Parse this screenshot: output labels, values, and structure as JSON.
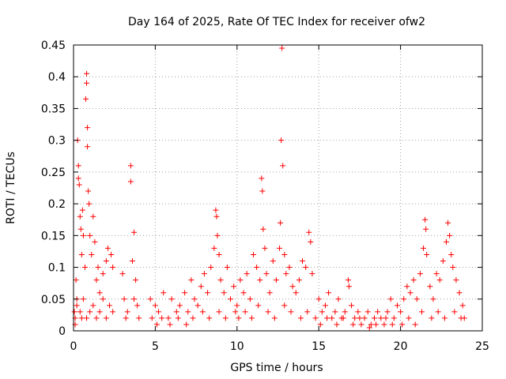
{
  "chart_data": {
    "type": "scatter",
    "title": "Day 164 of 2025, Rate Of TEC Index for receiver ofw2",
    "xlabel": "GPS time / hours",
    "ylabel": "ROTI / TECUs",
    "xlim": [
      0,
      25
    ],
    "ylim": [
      0,
      0.45
    ],
    "x_ticks": [
      "0",
      "5",
      "10",
      "15",
      "20",
      "25"
    ],
    "y_ticks": [
      "0",
      "0.05",
      "0.1",
      "0.15",
      "0.2",
      "0.25",
      "0.3",
      "0.35",
      "0.4",
      "0.45"
    ],
    "grid": true,
    "marker": "+",
    "color": "#ff0000",
    "series": [
      {
        "points": [
          [
            0.05,
            0.03
          ],
          [
            0.1,
            0.02
          ],
          [
            0.15,
            0.08
          ],
          [
            0.2,
            0.05
          ],
          [
            0.25,
            0.3
          ],
          [
            0.3,
            0.24
          ],
          [
            0.3,
            0.26
          ],
          [
            0.35,
            0.23
          ],
          [
            0.4,
            0.18
          ],
          [
            0.45,
            0.16
          ],
          [
            0.5,
            0.12
          ],
          [
            0.55,
            0.19
          ],
          [
            0.6,
            0.15
          ],
          [
            0.7,
            0.1
          ],
          [
            0.75,
            0.365
          ],
          [
            0.8,
            0.39
          ],
          [
            0.8,
            0.405
          ],
          [
            0.85,
            0.29
          ],
          [
            0.85,
            0.32
          ],
          [
            0.9,
            0.22
          ],
          [
            0.95,
            0.2
          ],
          [
            1.0,
            0.15
          ],
          [
            1.1,
            0.12
          ],
          [
            1.2,
            0.18
          ],
          [
            1.3,
            0.14
          ],
          [
            1.4,
            0.08
          ],
          [
            1.5,
            0.1
          ],
          [
            1.6,
            0.06
          ],
          [
            1.8,
            0.09
          ],
          [
            2.0,
            0.11
          ],
          [
            2.1,
            0.13
          ],
          [
            2.3,
            0.12
          ],
          [
            2.4,
            0.1
          ],
          [
            0.1,
            0.01
          ],
          [
            0.2,
            0.04
          ],
          [
            0.4,
            0.03
          ],
          [
            0.5,
            0.02
          ],
          [
            0.6,
            0.05
          ],
          [
            0.8,
            0.02
          ],
          [
            1.0,
            0.03
          ],
          [
            1.2,
            0.04
          ],
          [
            1.4,
            0.02
          ],
          [
            1.6,
            0.03
          ],
          [
            1.8,
            0.05
          ],
          [
            2.0,
            0.02
          ],
          [
            2.2,
            0.04
          ],
          [
            2.4,
            0.03
          ],
          [
            3.0,
            0.09
          ],
          [
            3.1,
            0.05
          ],
          [
            3.2,
            0.02
          ],
          [
            3.5,
            0.26
          ],
          [
            3.5,
            0.235
          ],
          [
            3.6,
            0.11
          ],
          [
            3.7,
            0.155
          ],
          [
            3.8,
            0.08
          ],
          [
            3.9,
            0.04
          ],
          [
            4.0,
            0.02
          ],
          [
            3.3,
            0.03
          ],
          [
            3.7,
            0.05
          ],
          [
            4.7,
            0.05
          ],
          [
            4.8,
            0.02
          ],
          [
            5.0,
            0.04
          ],
          [
            5.2,
            0.03
          ],
          [
            5.5,
            0.06
          ],
          [
            5.8,
            0.02
          ],
          [
            6.0,
            0.05
          ],
          [
            6.3,
            0.03
          ],
          [
            6.5,
            0.04
          ],
          [
            6.8,
            0.06
          ],
          [
            7.0,
            0.03
          ],
          [
            7.2,
            0.08
          ],
          [
            7.4,
            0.05
          ],
          [
            7.6,
            0.04
          ],
          [
            7.8,
            0.07
          ],
          [
            8.0,
            0.09
          ],
          [
            8.2,
            0.06
          ],
          [
            8.4,
            0.1
          ],
          [
            8.6,
            0.13
          ],
          [
            8.7,
            0.19
          ],
          [
            8.75,
            0.18
          ],
          [
            8.8,
            0.15
          ],
          [
            8.9,
            0.12
          ],
          [
            9.0,
            0.08
          ],
          [
            9.2,
            0.06
          ],
          [
            9.4,
            0.1
          ],
          [
            9.6,
            0.05
          ],
          [
            9.8,
            0.07
          ],
          [
            5.1,
            0.01
          ],
          [
            5.4,
            0.02
          ],
          [
            5.9,
            0.01
          ],
          [
            6.4,
            0.02
          ],
          [
            6.9,
            0.01
          ],
          [
            7.3,
            0.02
          ],
          [
            7.9,
            0.03
          ],
          [
            8.3,
            0.02
          ],
          [
            8.9,
            0.03
          ],
          [
            9.3,
            0.02
          ],
          [
            9.9,
            0.03
          ],
          [
            10.0,
            0.04
          ],
          [
            10.2,
            0.08
          ],
          [
            10.4,
            0.06
          ],
          [
            10.6,
            0.09
          ],
          [
            10.8,
            0.05
          ],
          [
            11.0,
            0.12
          ],
          [
            11.2,
            0.1
          ],
          [
            11.4,
            0.08
          ],
          [
            11.5,
            0.24
          ],
          [
            11.55,
            0.22
          ],
          [
            11.6,
            0.16
          ],
          [
            11.7,
            0.13
          ],
          [
            11.8,
            0.09
          ],
          [
            12.0,
            0.06
          ],
          [
            12.2,
            0.11
          ],
          [
            12.4,
            0.08
          ],
          [
            12.6,
            0.13
          ],
          [
            12.65,
            0.17
          ],
          [
            12.7,
            0.3
          ],
          [
            12.75,
            0.445
          ],
          [
            12.8,
            0.26
          ],
          [
            12.9,
            0.12
          ],
          [
            13.0,
            0.09
          ],
          [
            13.2,
            0.1
          ],
          [
            13.4,
            0.07
          ],
          [
            13.6,
            0.06
          ],
          [
            13.8,
            0.08
          ],
          [
            14.0,
            0.11
          ],
          [
            14.2,
            0.1
          ],
          [
            14.4,
            0.155
          ],
          [
            14.5,
            0.14
          ],
          [
            14.6,
            0.09
          ],
          [
            10.1,
            0.02
          ],
          [
            10.5,
            0.03
          ],
          [
            10.9,
            0.02
          ],
          [
            11.3,
            0.04
          ],
          [
            11.9,
            0.03
          ],
          [
            12.3,
            0.02
          ],
          [
            12.9,
            0.04
          ],
          [
            13.3,
            0.03
          ],
          [
            13.9,
            0.02
          ],
          [
            14.3,
            0.03
          ],
          [
            14.8,
            0.02
          ],
          [
            15.0,
            0.05
          ],
          [
            15.2,
            0.03
          ],
          [
            15.4,
            0.04
          ],
          [
            15.6,
            0.06
          ],
          [
            15.8,
            0.02
          ],
          [
            16.0,
            0.03
          ],
          [
            16.2,
            0.05
          ],
          [
            16.4,
            0.02
          ],
          [
            16.6,
            0.03
          ],
          [
            16.8,
            0.08
          ],
          [
            16.85,
            0.07
          ],
          [
            17.0,
            0.04
          ],
          [
            17.2,
            0.02
          ],
          [
            17.4,
            0.03
          ],
          [
            17.6,
            0.01
          ],
          [
            17.8,
            0.02
          ],
          [
            18.0,
            0.03
          ],
          [
            18.2,
            0.01
          ],
          [
            18.4,
            0.02
          ],
          [
            18.6,
            0.03
          ],
          [
            18.8,
            0.02
          ],
          [
            19.0,
            0.01
          ],
          [
            19.2,
            0.03
          ],
          [
            19.4,
            0.05
          ],
          [
            19.6,
            0.02
          ],
          [
            19.8,
            0.04
          ],
          [
            15.1,
            0.01
          ],
          [
            15.5,
            0.02
          ],
          [
            16.1,
            0.01
          ],
          [
            16.5,
            0.02
          ],
          [
            17.1,
            0.01
          ],
          [
            17.5,
            0.02
          ],
          [
            18.1,
            0.005
          ],
          [
            18.5,
            0.01
          ],
          [
            19.1,
            0.02
          ],
          [
            19.5,
            0.01
          ],
          [
            20.0,
            0.03
          ],
          [
            20.2,
            0.05
          ],
          [
            20.4,
            0.07
          ],
          [
            20.6,
            0.06
          ],
          [
            20.8,
            0.08
          ],
          [
            21.0,
            0.05
          ],
          [
            21.2,
            0.09
          ],
          [
            21.4,
            0.13
          ],
          [
            21.5,
            0.175
          ],
          [
            21.55,
            0.16
          ],
          [
            21.6,
            0.12
          ],
          [
            21.8,
            0.07
          ],
          [
            22.0,
            0.05
          ],
          [
            22.2,
            0.09
          ],
          [
            22.4,
            0.08
          ],
          [
            22.6,
            0.11
          ],
          [
            22.8,
            0.14
          ],
          [
            22.9,
            0.17
          ],
          [
            23.0,
            0.15
          ],
          [
            23.1,
            0.12
          ],
          [
            23.2,
            0.1
          ],
          [
            23.4,
            0.08
          ],
          [
            23.6,
            0.06
          ],
          [
            23.8,
            0.04
          ],
          [
            23.9,
            0.02
          ],
          [
            20.1,
            0.01
          ],
          [
            20.5,
            0.02
          ],
          [
            20.9,
            0.01
          ],
          [
            21.3,
            0.03
          ],
          [
            21.9,
            0.02
          ],
          [
            22.3,
            0.03
          ],
          [
            22.7,
            0.02
          ],
          [
            23.3,
            0.03
          ],
          [
            23.7,
            0.02
          ]
        ]
      }
    ]
  }
}
